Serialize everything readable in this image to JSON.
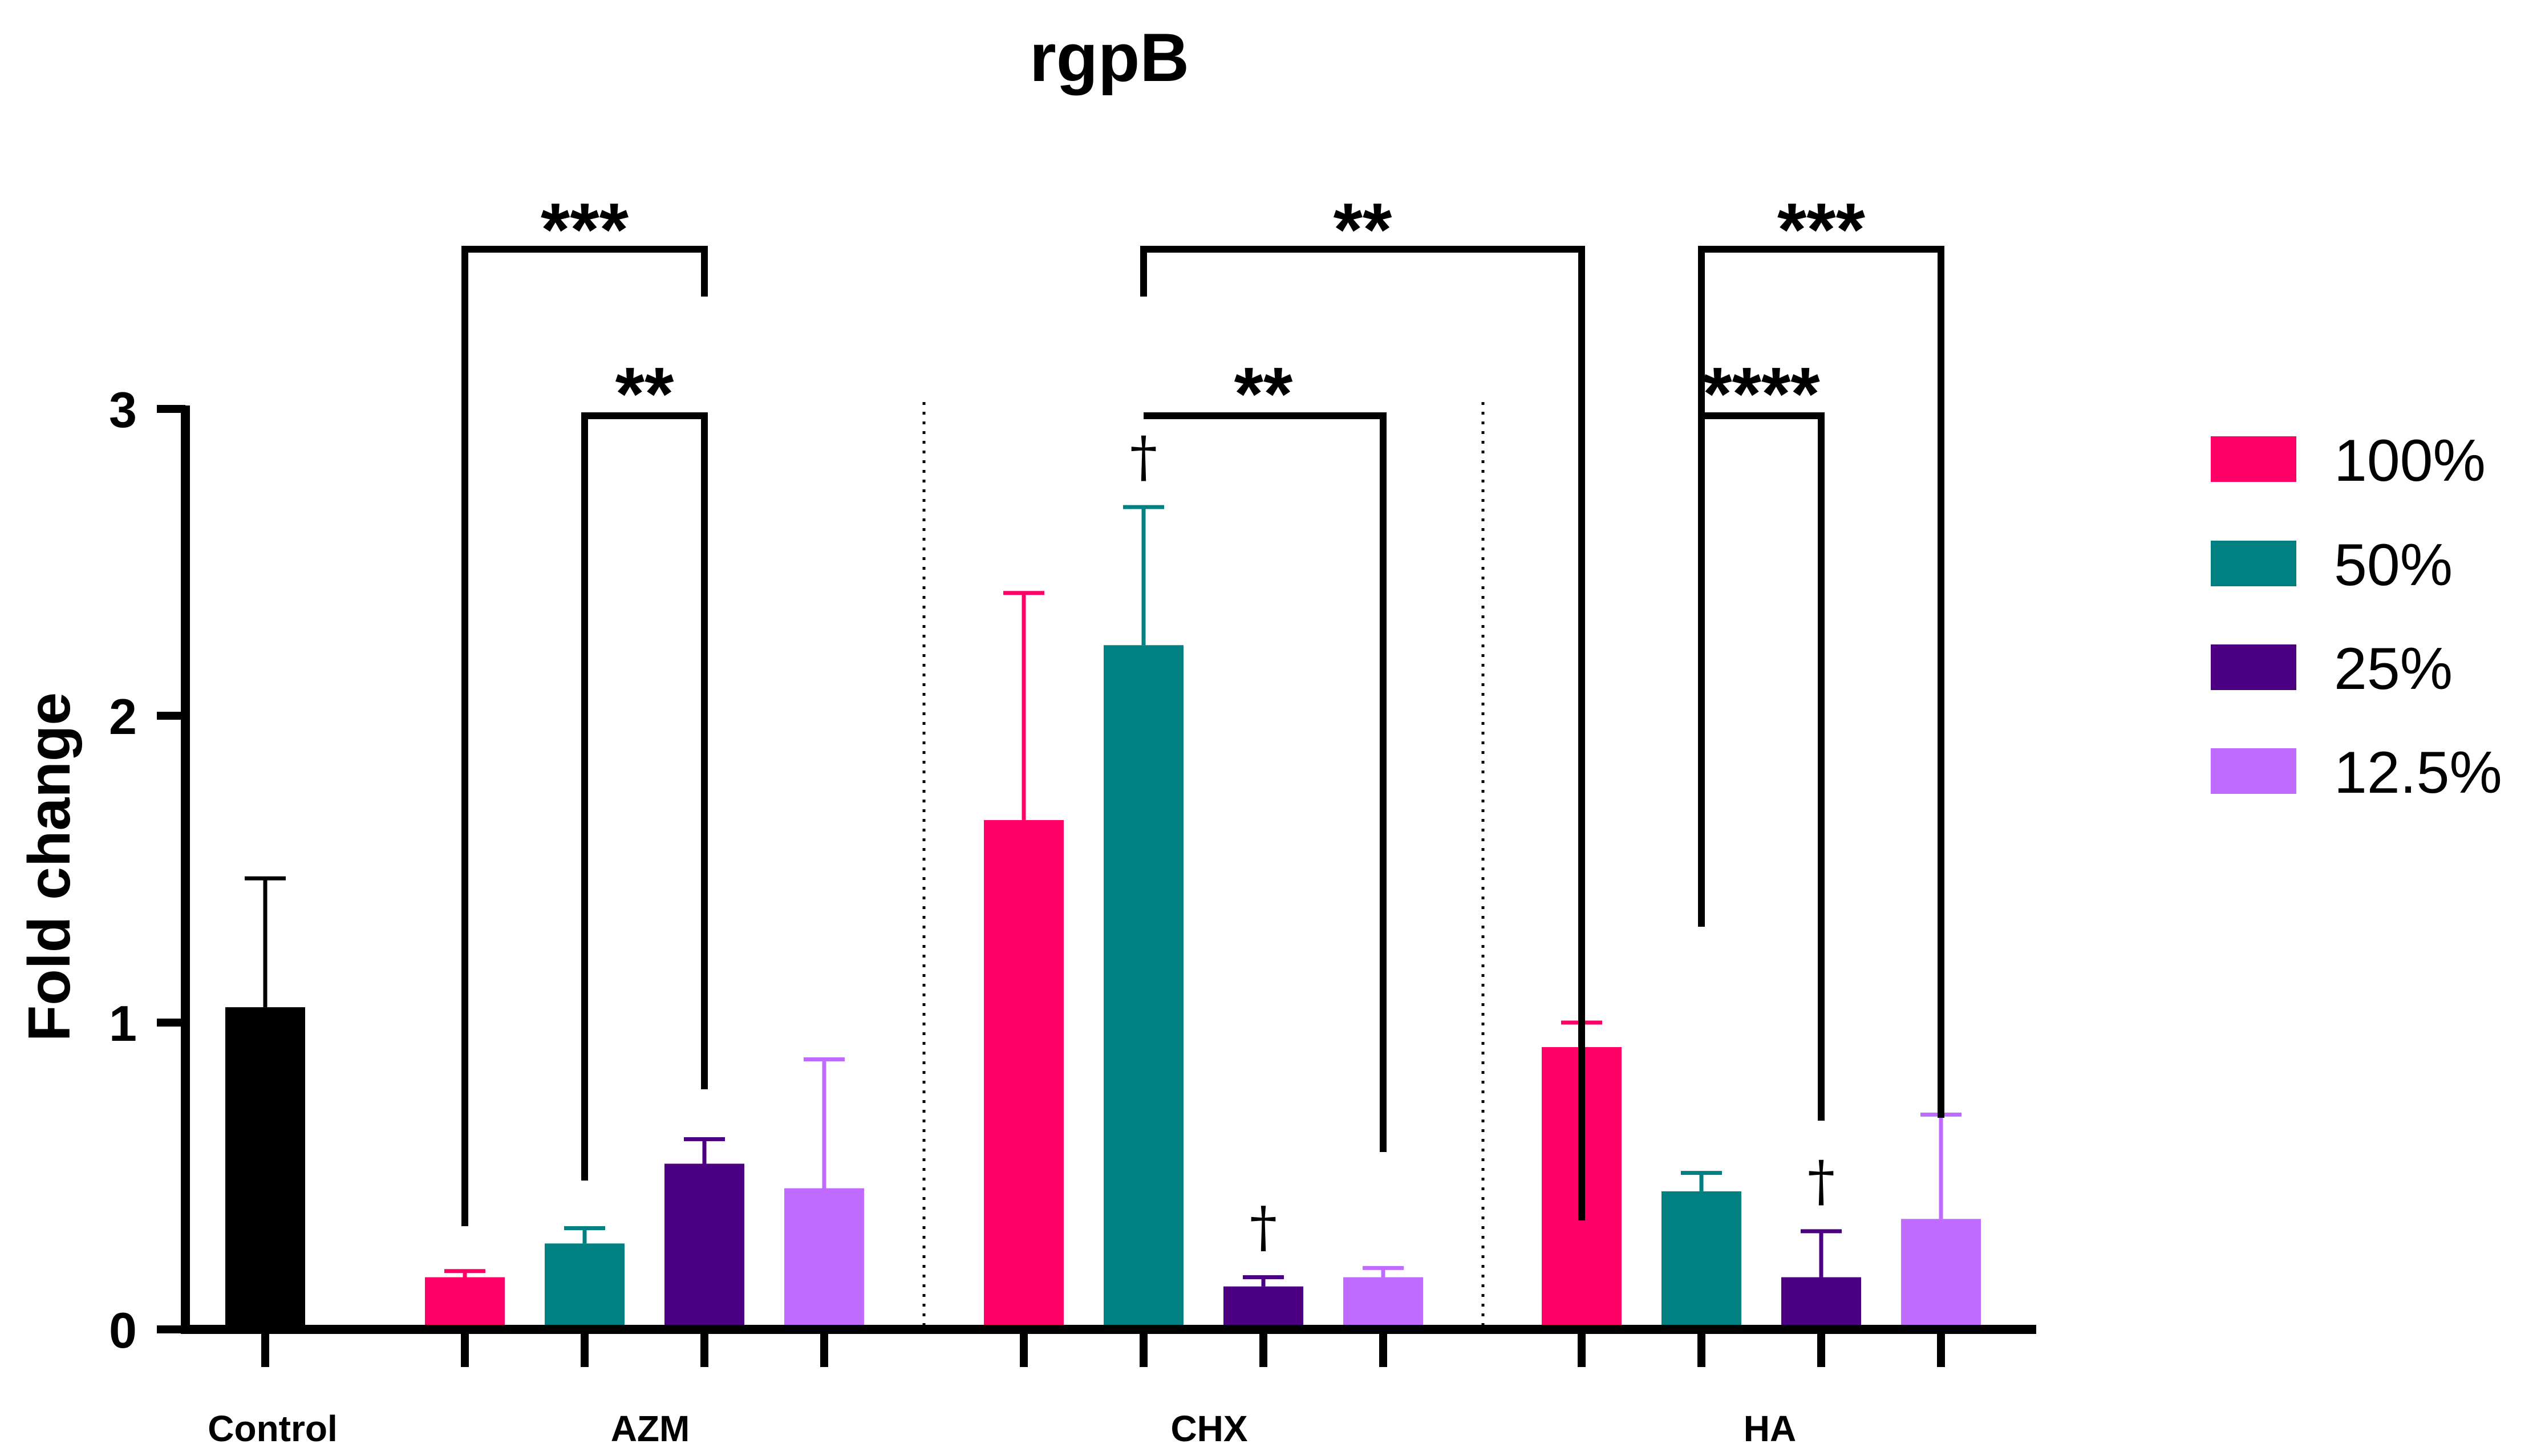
{
  "chart_data": {
    "type": "bar",
    "title": "rgpB",
    "ylabel": "Fold change",
    "xlabel": "",
    "ylim": [
      0,
      3
    ],
    "yticks": [
      0,
      1,
      2,
      3
    ],
    "groups": [
      "Control",
      "AZM",
      "CHX",
      "HA"
    ],
    "legend": {
      "placement": "right",
      "entries": [
        "100%",
        "50%",
        "25%",
        "12.5%"
      ]
    },
    "colors": {
      "Control": "#000000",
      "100%": "#FF0066",
      "50%": "#008080",
      "25%": "#4B0082",
      "12.5%": "#BF6BFF"
    },
    "bars": [
      {
        "group": "Control",
        "series": "Control",
        "value": 1.05,
        "error": 0.42
      },
      {
        "group": "AZM",
        "series": "100%",
        "value": 0.17,
        "error": 0.02
      },
      {
        "group": "AZM",
        "series": "50%",
        "value": 0.28,
        "error": 0.05
      },
      {
        "group": "AZM",
        "series": "25%",
        "value": 0.54,
        "error": 0.08
      },
      {
        "group": "AZM",
        "series": "12.5%",
        "value": 0.46,
        "error": 0.42
      },
      {
        "group": "CHX",
        "series": "100%",
        "value": 1.66,
        "error": 0.74
      },
      {
        "group": "CHX",
        "series": "50%",
        "value": 2.23,
        "error": 0.45,
        "dagger": "†"
      },
      {
        "group": "CHX",
        "series": "25%",
        "value": 0.14,
        "error": 0.03,
        "dagger": "†"
      },
      {
        "group": "CHX",
        "series": "12.5%",
        "value": 0.17,
        "error": 0.03
      },
      {
        "group": "HA",
        "series": "100%",
        "value": 0.92,
        "error": 0.08
      },
      {
        "group": "HA",
        "series": "50%",
        "value": 0.45,
        "error": 0.06
      },
      {
        "group": "HA",
        "series": "25%",
        "value": 0.17,
        "error": 0.15,
        "dagger": "†"
      },
      {
        "group": "HA",
        "series": "12.5%",
        "value": 0.36,
        "error": 0.34
      }
    ],
    "significance": [
      {
        "from": 1,
        "to": 3,
        "label": "***"
      },
      {
        "from": 2,
        "to": 3,
        "label": "**"
      },
      {
        "from": 6,
        "to": 8,
        "label": "**"
      },
      {
        "from": 6,
        "to": 9,
        "label": "**"
      },
      {
        "from": 10,
        "to": 12,
        "label": "***"
      },
      {
        "from": 10,
        "to": 11,
        "label": "****"
      }
    ]
  }
}
